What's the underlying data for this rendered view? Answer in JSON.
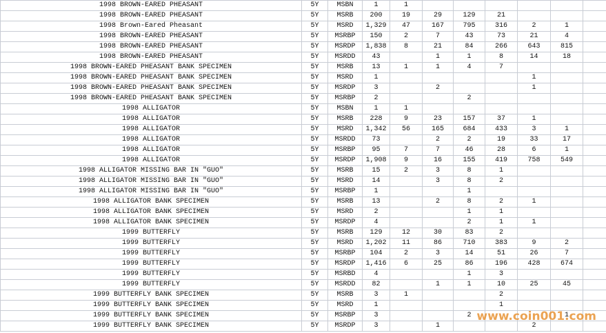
{
  "table": {
    "rows": [
      [
        "1998 BROWN-EARED PHEASANT",
        "5Y",
        "MSBN",
        "1",
        "1",
        null,
        null,
        null,
        null,
        null
      ],
      [
        "1998 BROWN-EARED PHEASANT",
        "5Y",
        "MSRB",
        "200",
        "19",
        "29",
        "129",
        "21",
        null,
        null
      ],
      [
        "1998 Brown-Eared Pheasant",
        "5Y",
        "MSRD",
        "1,329",
        "47",
        "167",
        "795",
        "316",
        "2",
        "1"
      ],
      [
        "1998 BROWN-EARED PHEASANT",
        "5Y",
        "MSRBP",
        "150",
        "2",
        "7",
        "43",
        "73",
        "21",
        "4"
      ],
      [
        "1998 BROWN-EARED PHEASANT",
        "5Y",
        "MSRDP",
        "1,838",
        "8",
        "21",
        "84",
        "266",
        "643",
        "815"
      ],
      [
        "1998 BROWN-EARED PHEASANT",
        "5Y",
        "MSRDD",
        "43",
        null,
        "1",
        "1",
        "8",
        "14",
        "18"
      ],
      [
        "1998 BROWN-EARED PHEASANT BANK SPECIMEN",
        "5Y",
        "MSRB",
        "13",
        "1",
        "1",
        "4",
        "7",
        null,
        null
      ],
      [
        "1998 BROWN-EARED PHEASANT BANK SPECIMEN",
        "5Y",
        "MSRD",
        "1",
        null,
        null,
        null,
        null,
        "1",
        null
      ],
      [
        "1998 BROWN-EARED PHEASANT BANK SPECIMEN",
        "5Y",
        "MSRDP",
        "3",
        null,
        "2",
        null,
        null,
        "1",
        null
      ],
      [
        "1998 BROWN-EARED PHEASANT BANK SPECIMEN",
        "5Y",
        "MSRBP",
        "2",
        null,
        null,
        "2",
        null,
        null,
        null
      ],
      [
        "1998 ALLIGATOR",
        "5Y",
        "MSBN",
        "1",
        "1",
        null,
        null,
        null,
        null,
        null
      ],
      [
        "1998 ALLIGATOR",
        "5Y",
        "MSRB",
        "228",
        "9",
        "23",
        "157",
        "37",
        "1",
        null
      ],
      [
        "1998 ALLIGATOR",
        "5Y",
        "MSRD",
        "1,342",
        "56",
        "165",
        "684",
        "433",
        "3",
        "1"
      ],
      [
        "1998 ALLIGATOR",
        "5Y",
        "MSRDD",
        "73",
        null,
        "2",
        "2",
        "19",
        "33",
        "17"
      ],
      [
        "1998 ALLIGATOR",
        "5Y",
        "MSRBP",
        "95",
        "7",
        "7",
        "46",
        "28",
        "6",
        "1"
      ],
      [
        "1998 ALLIGATOR",
        "5Y",
        "MSRDP",
        "1,908",
        "9",
        "16",
        "155",
        "419",
        "758",
        "549"
      ],
      [
        "1998 ALLIGATOR MISSING BAR IN \"GUO\"",
        "5Y",
        "MSRB",
        "15",
        "2",
        "3",
        "8",
        "1",
        null,
        null
      ],
      [
        "1998 ALLIGATOR MISSING BAR IN \"GUO\"",
        "5Y",
        "MSRD",
        "14",
        null,
        "3",
        "8",
        "2",
        null,
        null
      ],
      [
        "1998 ALLIGATOR MISSING BAR IN \"GUO\"",
        "5Y",
        "MSRBP",
        "1",
        null,
        null,
        "1",
        null,
        null,
        null
      ],
      [
        "1998 ALLIGATOR BANK SPECIMEN",
        "5Y",
        "MSRB",
        "13",
        null,
        "2",
        "8",
        "2",
        "1",
        null
      ],
      [
        "1998 ALLIGATOR BANK SPECIMEN",
        "5Y",
        "MSRD",
        "2",
        null,
        null,
        "1",
        "1",
        null,
        null
      ],
      [
        "1998 ALLIGATOR BANK SPECIMEN",
        "5Y",
        "MSRDP",
        "4",
        null,
        null,
        "2",
        "1",
        "1",
        null
      ],
      [
        "1999 BUTTERFLY",
        "5Y",
        "MSRB",
        "129",
        "12",
        "30",
        "83",
        "2",
        null,
        null
      ],
      [
        "1999 BUTTERFLY",
        "5Y",
        "MSRD",
        "1,202",
        "11",
        "86",
        "710",
        "383",
        "9",
        "2"
      ],
      [
        "1999 BUTTERFLY",
        "5Y",
        "MSRBP",
        "104",
        "2",
        "3",
        "14",
        "51",
        "26",
        "7"
      ],
      [
        "1999 BUTTERFLY",
        "5Y",
        "MSRDP",
        "1,416",
        "6",
        "25",
        "86",
        "196",
        "428",
        "674"
      ],
      [
        "1999 BUTTERFLY",
        "5Y",
        "MSRBD",
        "4",
        null,
        null,
        "1",
        "3",
        null,
        null
      ],
      [
        "1999 BUTTERFLY",
        "5Y",
        "MSRDD",
        "82",
        null,
        "1",
        "1",
        "10",
        "25",
        "45"
      ],
      [
        "1999 BUTTERFLY BANK SPECIMEN",
        "5Y",
        "MSRB",
        "3",
        "1",
        null,
        null,
        "2",
        null,
        null
      ],
      [
        "1999 BUTTERFLY BANK SPECIMEN",
        "5Y",
        "MSRD",
        "1",
        null,
        null,
        null,
        "1",
        null,
        null
      ],
      [
        "1999 BUTTERFLY BANK SPECIMEN",
        "5Y",
        "MSRBP",
        "3",
        null,
        null,
        "2",
        null,
        null,
        "1"
      ],
      [
        "1999 BUTTERFLY BANK SPECIMEN",
        "5Y",
        "MSRDP",
        "3",
        null,
        "1",
        null,
        null,
        "2",
        null
      ]
    ]
  },
  "watermark": "www.coin001.com"
}
